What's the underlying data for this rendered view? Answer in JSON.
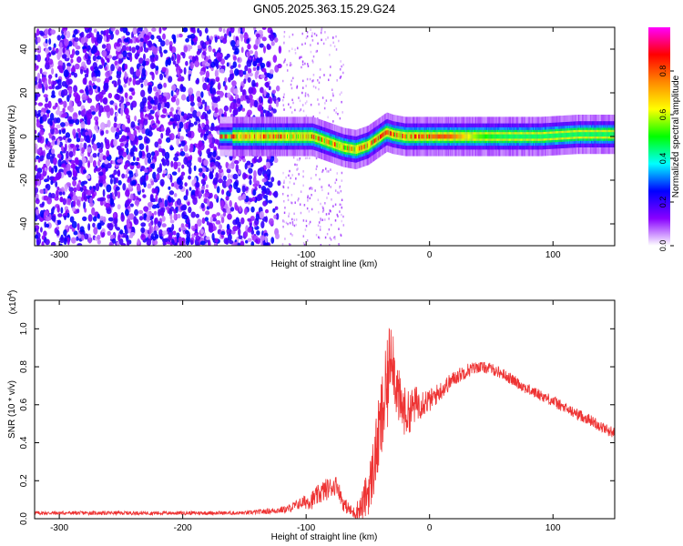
{
  "title": "GN05.2025.363.15.29.G24",
  "chart_data": [
    {
      "type": "heatmap",
      "xlabel": "Height of straight line (km)",
      "ylabel": "Frequency (Hz)",
      "xlim": [
        -320,
        150
      ],
      "ylim": [
        -50,
        50
      ],
      "xticks": [
        -300,
        -200,
        -100,
        0,
        100
      ],
      "yticks": [
        -40,
        -20,
        0,
        20,
        40
      ],
      "colorbar": {
        "label": "Normalized spectral amplitude",
        "range": [
          0.0,
          1.0
        ],
        "ticks": [
          0.0,
          0.2,
          0.4,
          0.6,
          0.8
        ],
        "tick_labels": [
          "0.0",
          "0.2",
          "0.4",
          "0.6",
          "0.8"
        ],
        "colormap": [
          "#ffffff",
          "#8800ff",
          "#0000ff",
          "#00ffff",
          "#00ff00",
          "#ffff00",
          "#ff8800",
          "#ff0000",
          "#ff00ff"
        ]
      },
      "noise_region": {
        "x_range": [
          -320,
          -120
        ],
        "mean_amplitude": 0.15
      },
      "sparse_region": {
        "x_range": [
          -120,
          -70
        ],
        "mean_amplitude": 0.08
      },
      "ridge": {
        "x": [
          -170,
          -150,
          -130,
          -110,
          -95,
          -80,
          -70,
          -60,
          -50,
          -40,
          -35,
          -30,
          -20,
          -10,
          0,
          20,
          50,
          90,
          120,
          150
        ],
        "y": [
          0,
          0,
          0,
          0,
          0,
          -3,
          -5,
          -6,
          -4,
          0,
          2,
          1,
          0,
          0,
          0,
          0,
          0,
          0,
          1,
          1
        ],
        "peak_amplitude": 0.9
      }
    },
    {
      "type": "line",
      "xlabel": "Height of straight line (km)",
      "ylabel": "SNR (10 * v/v)",
      "y_scale_label": "(x10",
      "y_scale_exponent": "4",
      "xlim": [
        -320,
        150
      ],
      "ylim": [
        0.0,
        1.15
      ],
      "xticks": [
        -300,
        -200,
        -100,
        0,
        100
      ],
      "yticks": [
        0.0,
        0.2,
        0.4,
        0.6,
        0.8,
        1.0
      ],
      "ytick_labels": [
        "0.0",
        "0.2",
        "0.4",
        "0.6",
        "0.8",
        "1.0"
      ],
      "series": [
        {
          "color": "#ee3333",
          "x": [
            -320,
            -300,
            -250,
            -200,
            -150,
            -130,
            -115,
            -105,
            -95,
            -85,
            -75,
            -70,
            -62,
            -55,
            -48,
            -42,
            -38,
            -34,
            -31,
            -28,
            -24,
            -18,
            -12,
            -5,
            0,
            10,
            20,
            30,
            40,
            50,
            60,
            70,
            80,
            90,
            100,
            110,
            120,
            130,
            140,
            150
          ],
          "y": [
            0.03,
            0.03,
            0.03,
            0.03,
            0.03,
            0.04,
            0.05,
            0.08,
            0.1,
            0.15,
            0.18,
            0.08,
            0.03,
            0.06,
            0.18,
            0.4,
            0.55,
            0.7,
            0.95,
            0.75,
            0.6,
            0.55,
            0.6,
            0.62,
            0.62,
            0.68,
            0.74,
            0.78,
            0.8,
            0.79,
            0.76,
            0.72,
            0.68,
            0.65,
            0.62,
            0.58,
            0.55,
            0.52,
            0.48,
            0.45
          ],
          "noise": [
            0.01,
            0.01,
            0.01,
            0.01,
            0.01,
            0.015,
            0.02,
            0.03,
            0.05,
            0.06,
            0.05,
            0.04,
            0.03,
            0.08,
            0.15,
            0.2,
            0.25,
            0.25,
            0.2,
            0.18,
            0.15,
            0.12,
            0.1,
            0.08,
            0.06,
            0.05,
            0.04,
            0.04,
            0.03,
            0.03,
            0.03,
            0.03,
            0.03,
            0.03,
            0.03,
            0.03,
            0.03,
            0.03,
            0.03,
            0.03
          ]
        }
      ]
    }
  ]
}
